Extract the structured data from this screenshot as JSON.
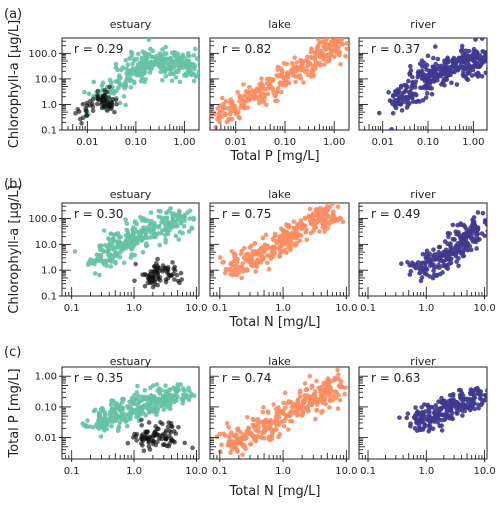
{
  "chart_data": [
    {
      "type": "scatter",
      "panel_label": "(a)",
      "xlabel": "Total P [mg/L]",
      "ylabel": "Chlorophyll-a [µg/L]",
      "xscale": "log",
      "yscale": "log",
      "xlim": [
        0.003,
        2.0
      ],
      "ylim": [
        0.1,
        400
      ],
      "xticks": [
        0.01,
        0.1,
        1.0
      ],
      "xtick_labels": [
        "0.01",
        "0.10",
        "1.00"
      ],
      "yticks": [
        0.1,
        1.0,
        10.0,
        100.0
      ],
      "ytick_labels": [
        "0.1",
        "1.0",
        "10.0",
        "100.0"
      ],
      "facets": [
        {
          "title": "estuary",
          "r_text": "r = 0.29",
          "color": "#66c2a5",
          "clouds": [
            {
              "x": [
                0.018,
                0.12,
                0.42,
                1.65
              ],
              "y": [
                1.5,
                35,
                55,
                20
              ],
              "n": 320,
              "spread_x": 0.35,
              "spread_y": 0.28
            },
            {
              "x": [
                0.006,
                0.02,
                0.03
              ],
              "y": [
                0.35,
                1.8,
                0.9
              ],
              "n": 70,
              "spread_x": 0.12,
              "spread_y": 0.22,
              "color": "#111111"
            }
          ]
        },
        {
          "title": "lake",
          "r_text": "r = 0.82",
          "color": "#fc8d62",
          "clouds": [
            {
              "x": [
                0.004,
                0.03,
                0.3,
                1.2
              ],
              "y": [
                0.3,
                3,
                40,
                300
              ],
              "n": 340,
              "spread_x": 0.2,
              "spread_y": 0.3
            }
          ]
        },
        {
          "title": "river",
          "r_text": "r = 0.37",
          "color": "#3f3a8f",
          "clouds": [
            {
              "x": [
                0.02,
                0.1,
                0.5,
                1.8
              ],
              "y": [
                1.0,
                12,
                40,
                60
              ],
              "n": 380,
              "spread_x": 0.3,
              "spread_y": 0.32
            }
          ]
        }
      ]
    },
    {
      "type": "scatter",
      "panel_label": "(b)",
      "xlabel": "Total N [mg/L]",
      "ylabel": "Chlorophyll-a [µg/L]",
      "xscale": "log",
      "yscale": "log",
      "xlim": [
        0.07,
        11
      ],
      "ylim": [
        0.1,
        400
      ],
      "xticks": [
        0.1,
        1.0,
        10.0
      ],
      "xtick_labels": [
        "0.1",
        "1.0",
        "10.0"
      ],
      "yticks": [
        0.1,
        1.0,
        10.0,
        100.0
      ],
      "ytick_labels": [
        "0.1",
        "1.0",
        "10.0",
        "100.0"
      ],
      "facets": [
        {
          "title": "estuary",
          "r_text": "r = 0.30",
          "color": "#66c2a5",
          "clouds": [
            {
              "x": [
                0.25,
                0.8,
                2.0,
                6.5
              ],
              "y": [
                2.0,
                15,
                40,
                120
              ],
              "n": 300,
              "spread_x": 0.25,
              "spread_y": 0.3
            },
            {
              "x": [
                1.5,
                2.8,
                5.0
              ],
              "y": [
                0.4,
                1.0,
                0.8
              ],
              "n": 80,
              "spread_x": 0.15,
              "spread_y": 0.25,
              "color": "#111111"
            }
          ]
        },
        {
          "title": "lake",
          "r_text": "r = 0.75",
          "color": "#fc8d62",
          "clouds": [
            {
              "x": [
                0.15,
                0.6,
                2.0,
                6.0
              ],
              "y": [
                1.0,
                6,
                40,
                200
              ],
              "n": 320,
              "spread_x": 0.2,
              "spread_y": 0.28
            }
          ]
        },
        {
          "title": "river",
          "r_text": "r = 0.49",
          "color": "#3f3a8f",
          "clouds": [
            {
              "x": [
                0.6,
                2.0,
                4.5,
                9.0
              ],
              "y": [
                0.8,
                3,
                15,
                60
              ],
              "n": 240,
              "spread_x": 0.2,
              "spread_y": 0.3
            }
          ]
        }
      ]
    },
    {
      "type": "scatter",
      "panel_label": "(c)",
      "xlabel": "Total N [mg/L]",
      "ylabel": "Total P [mg/L]",
      "xscale": "log",
      "yscale": "log",
      "xlim": [
        0.07,
        11
      ],
      "ylim": [
        0.002,
        2.0
      ],
      "xticks": [
        0.1,
        1.0,
        10.0
      ],
      "xtick_labels": [
        "0.1",
        "1.0",
        "10.0"
      ],
      "yticks": [
        0.01,
        0.1,
        1.0
      ],
      "ytick_labels": [
        "0.01",
        "0.10",
        "1.00"
      ],
      "facets": [
        {
          "title": "estuary",
          "r_text": "r = 0.35",
          "color": "#66c2a5",
          "clouds": [
            {
              "x": [
                0.25,
                0.7,
                2.0,
                6.0
              ],
              "y": [
                0.025,
                0.08,
                0.15,
                0.3
              ],
              "n": 320,
              "spread_x": 0.25,
              "spread_y": 0.22
            },
            {
              "x": [
                1.2,
                2.5,
                5.0
              ],
              "y": [
                0.008,
                0.015,
                0.01
              ],
              "n": 90,
              "spread_x": 0.18,
              "spread_y": 0.2,
              "color": "#111111"
            }
          ]
        },
        {
          "title": "lake",
          "r_text": "r = 0.74",
          "color": "#fc8d62",
          "clouds": [
            {
              "x": [
                0.12,
                0.5,
                2.0,
                7.0
              ],
              "y": [
                0.006,
                0.02,
                0.12,
                0.5
              ],
              "n": 340,
              "spread_x": 0.22,
              "spread_y": 0.26
            }
          ]
        },
        {
          "title": "river",
          "r_text": "r = 0.63",
          "color": "#3f3a8f",
          "clouds": [
            {
              "x": [
                0.6,
                1.5,
                4.0,
                9.5
              ],
              "y": [
                0.03,
                0.06,
                0.12,
                0.3
              ],
              "n": 260,
              "spread_x": 0.2,
              "spread_y": 0.22
            }
          ]
        }
      ]
    }
  ]
}
